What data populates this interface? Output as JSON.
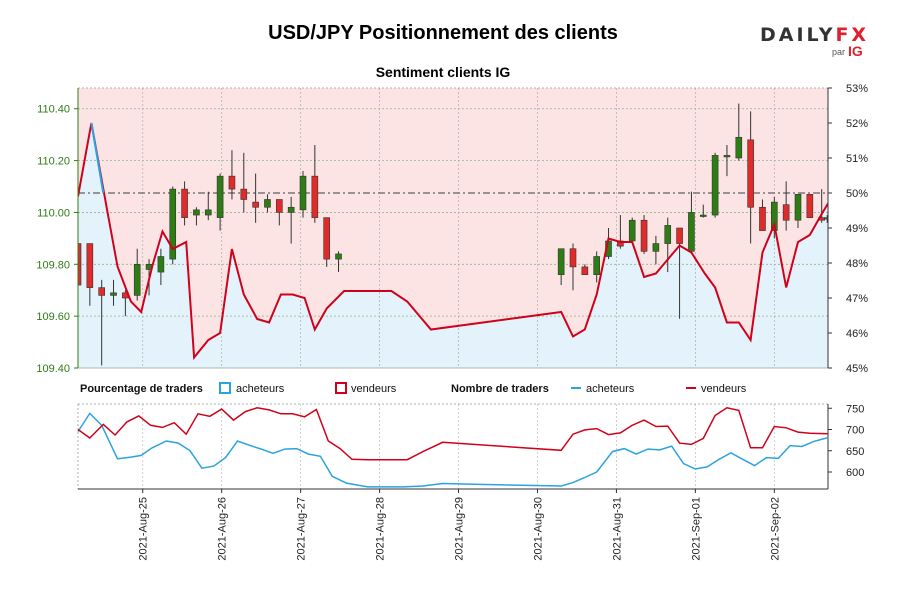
{
  "header": {
    "title": "USD/JPY Positionnement des clients",
    "subtitle": "Sentiment clients IG",
    "logo_main_a": "DAILY",
    "logo_main_b": "FX",
    "logo_par": "par",
    "logo_ig": "IG"
  },
  "colors": {
    "candle_up": "#2e7d14",
    "candle_down": "#e02b2b",
    "sentiment_line": "#d0021b",
    "bg_top": "#fce4e4",
    "bg_bottom": "#e4f3fb",
    "buyers_line": "#2aa3e0",
    "sellers_line": "#d0021b",
    "axis_left": "#2e7d14"
  },
  "legend": {
    "pct_label": "Pourcentage de traders",
    "pct_buyers": "acheteurs",
    "pct_sellers": "vendeurs",
    "count_label": "Nombre de traders",
    "count_buyers": "acheteurs",
    "count_sellers": "vendeurs"
  },
  "chart_data": [
    {
      "type": "candlestick",
      "left_axis": {
        "ylim": [
          109.4,
          110.48
        ],
        "ticks": [
          "109.40",
          "109.60",
          "109.80",
          "110.00",
          "110.20",
          "110.40"
        ],
        "tick_values": [
          109.4,
          109.6,
          109.8,
          110.0,
          110.2,
          110.4
        ]
      },
      "right_axis": {
        "ylim": [
          45,
          53
        ],
        "ticks": [
          "45%",
          "46%",
          "47%",
          "48%",
          "49%",
          "50%",
          "51%",
          "52%",
          "53%"
        ],
        "tick_values": [
          45,
          46,
          47,
          48,
          49,
          50,
          51,
          52,
          53
        ]
      },
      "reference_line_pct": 50,
      "x_labels": [
        "2021-Aug-25",
        "2021-Aug-26",
        "2021-Aug-27",
        "2021-Aug-28",
        "2021-Aug-29",
        "2021-Aug-30",
        "2021-Aug-31",
        "2021-Sep-01",
        "2021-Sep-02"
      ],
      "x_label_days": [
        1,
        2,
        3,
        4,
        5,
        6,
        7,
        8,
        9
      ],
      "x_range": [
        0.18,
        9.68
      ],
      "candles": [
        [
          0.18,
          109.88,
          110.04,
          109.7,
          109.72
        ],
        [
          0.33,
          109.88,
          109.88,
          109.64,
          109.71
        ],
        [
          0.48,
          109.71,
          109.74,
          109.41,
          109.68
        ],
        [
          0.63,
          109.68,
          109.74,
          109.64,
          109.69
        ],
        [
          0.78,
          109.69,
          109.7,
          109.6,
          109.67
        ],
        [
          0.93,
          109.68,
          109.86,
          109.66,
          109.8
        ],
        [
          1.08,
          109.78,
          109.82,
          109.68,
          109.8
        ],
        [
          1.23,
          109.77,
          109.86,
          109.72,
          109.83
        ],
        [
          1.38,
          109.82,
          110.1,
          109.8,
          110.09
        ],
        [
          1.53,
          110.09,
          110.12,
          109.95,
          109.98
        ],
        [
          1.68,
          109.99,
          110.02,
          109.95,
          110.01
        ],
        [
          1.83,
          109.99,
          110.08,
          109.97,
          110.01
        ],
        [
          1.98,
          109.98,
          110.15,
          109.93,
          110.14
        ],
        [
          2.13,
          110.14,
          110.24,
          110.05,
          110.09
        ],
        [
          2.28,
          110.09,
          110.23,
          110.0,
          110.05
        ],
        [
          2.43,
          110.04,
          110.15,
          109.96,
          110.02
        ],
        [
          2.58,
          110.02,
          110.07,
          110.0,
          110.05
        ],
        [
          2.73,
          110.05,
          110.05,
          109.95,
          110.0
        ],
        [
          2.88,
          110.0,
          110.06,
          109.88,
          110.02
        ],
        [
          3.03,
          110.01,
          110.16,
          109.98,
          110.14
        ],
        [
          3.18,
          110.14,
          110.26,
          109.96,
          109.98
        ],
        [
          3.33,
          109.98,
          109.98,
          109.79,
          109.82
        ],
        [
          3.48,
          109.82,
          109.85,
          109.77,
          109.84
        ],
        [
          6.3,
          109.76,
          109.85,
          109.72,
          109.86
        ],
        [
          6.45,
          109.86,
          109.88,
          109.7,
          109.79
        ],
        [
          6.6,
          109.79,
          109.8,
          109.77,
          109.76
        ],
        [
          6.75,
          109.76,
          109.85,
          109.73,
          109.83
        ],
        [
          6.9,
          109.83,
          109.94,
          109.82,
          109.89
        ],
        [
          7.05,
          109.89,
          109.99,
          109.86,
          109.87
        ],
        [
          7.2,
          109.89,
          109.98,
          109.88,
          109.97
        ],
        [
          7.35,
          109.97,
          109.99,
          109.84,
          109.85
        ],
        [
          7.5,
          109.85,
          109.91,
          109.8,
          109.88
        ],
        [
          7.65,
          109.88,
          109.98,
          109.77,
          109.95
        ],
        [
          7.8,
          109.94,
          109.94,
          109.59,
          109.88
        ],
        [
          7.95,
          109.85,
          110.08,
          109.84,
          110.0
        ],
        [
          8.1,
          109.99,
          110.03,
          109.98,
          109.99
        ],
        [
          8.25,
          109.99,
          110.23,
          109.98,
          110.22
        ],
        [
          8.4,
          110.22,
          110.26,
          110.14,
          110.22
        ],
        [
          8.55,
          110.21,
          110.42,
          110.2,
          110.29
        ],
        [
          8.7,
          110.28,
          110.39,
          109.88,
          110.02
        ],
        [
          8.85,
          110.02,
          110.05,
          109.93,
          109.93
        ],
        [
          9.0,
          109.93,
          110.06,
          109.9,
          110.04
        ],
        [
          9.15,
          110.03,
          110.12,
          109.93,
          109.97
        ],
        [
          9.3,
          109.97,
          110.07,
          109.94,
          110.07
        ],
        [
          9.45,
          110.07,
          110.07,
          109.98,
          109.98
        ],
        [
          9.6,
          109.98,
          110.09,
          109.96,
          109.97
        ],
        [
          9.67,
          109.98,
          109.99,
          109.96,
          109.98
        ]
      ],
      "sentiment_pct": [
        [
          0.18,
          49.9
        ],
        [
          0.35,
          52.0
        ],
        [
          0.55,
          49.5
        ],
        [
          0.68,
          47.9
        ],
        [
          0.85,
          46.9
        ],
        [
          0.98,
          46.6
        ],
        [
          1.12,
          47.9
        ],
        [
          1.25,
          48.9
        ],
        [
          1.38,
          48.4
        ],
        [
          1.55,
          48.6
        ],
        [
          1.65,
          45.3
        ],
        [
          1.83,
          45.8
        ],
        [
          1.98,
          46.0
        ],
        [
          2.13,
          48.4
        ],
        [
          2.28,
          47.1
        ],
        [
          2.45,
          46.4
        ],
        [
          2.6,
          46.3
        ],
        [
          2.75,
          47.1
        ],
        [
          2.9,
          47.1
        ],
        [
          3.05,
          47.0
        ],
        [
          3.18,
          46.1
        ],
        [
          3.33,
          46.7
        ],
        [
          3.55,
          47.2
        ],
        [
          4.15,
          47.2
        ],
        [
          4.35,
          46.9
        ],
        [
          4.65,
          46.1
        ],
        [
          6.3,
          46.6
        ],
        [
          6.45,
          45.9
        ],
        [
          6.6,
          46.1
        ],
        [
          6.75,
          47.1
        ],
        [
          6.9,
          48.7
        ],
        [
          7.05,
          48.6
        ],
        [
          7.2,
          48.6
        ],
        [
          7.35,
          47.6
        ],
        [
          7.5,
          47.7
        ],
        [
          7.65,
          48.1
        ],
        [
          7.8,
          48.5
        ],
        [
          7.95,
          48.3
        ],
        [
          8.12,
          47.7
        ],
        [
          8.25,
          47.3
        ],
        [
          8.4,
          46.3
        ],
        [
          8.55,
          46.3
        ],
        [
          8.7,
          45.8
        ],
        [
          8.85,
          48.3
        ],
        [
          9.0,
          49.1
        ],
        [
          9.15,
          47.3
        ],
        [
          9.3,
          48.6
        ],
        [
          9.45,
          48.8
        ],
        [
          9.6,
          49.4
        ],
        [
          9.68,
          49.7
        ]
      ]
    },
    {
      "type": "line",
      "ylim": [
        560,
        760
      ],
      "ticks": [
        "600",
        "650",
        "700",
        "750"
      ],
      "tick_values": [
        600,
        650,
        700,
        750
      ],
      "x_range": [
        0.18,
        9.68
      ],
      "series": [
        {
          "name": "acheteurs",
          "points": [
            [
              0.18,
              695
            ],
            [
              0.33,
              738
            ],
            [
              0.48,
              710
            ],
            [
              0.68,
              631
            ],
            [
              0.85,
              635
            ],
            [
              0.98,
              639
            ],
            [
              1.12,
              657
            ],
            [
              1.3,
              673
            ],
            [
              1.45,
              668
            ],
            [
              1.6,
              650
            ],
            [
              1.75,
              609
            ],
            [
              1.9,
              614
            ],
            [
              2.05,
              634
            ],
            [
              2.2,
              673
            ],
            [
              2.35,
              663
            ],
            [
              2.5,
              654
            ],
            [
              2.65,
              644
            ],
            [
              2.8,
              654
            ],
            [
              2.95,
              655
            ],
            [
              3.1,
              642
            ],
            [
              3.25,
              637
            ],
            [
              3.4,
              590
            ],
            [
              3.58,
              574
            ],
            [
              3.85,
              565
            ],
            [
              4.3,
              565
            ],
            [
              4.55,
              567
            ],
            [
              4.8,
              573
            ],
            [
              5.2,
              571
            ],
            [
              6.3,
              567
            ],
            [
              6.45,
              575
            ],
            [
              6.6,
              587
            ],
            [
              6.75,
              600
            ],
            [
              6.95,
              648
            ],
            [
              7.1,
              655
            ],
            [
              7.25,
              642
            ],
            [
              7.4,
              654
            ],
            [
              7.55,
              652
            ],
            [
              7.7,
              661
            ],
            [
              7.85,
              620
            ],
            [
              8.0,
              607
            ],
            [
              8.15,
              612
            ],
            [
              8.3,
              630
            ],
            [
              8.45,
              645
            ],
            [
              8.6,
              630
            ],
            [
              8.75,
              615
            ],
            [
              8.9,
              634
            ],
            [
              9.05,
              632
            ],
            [
              9.2,
              662
            ],
            [
              9.35,
              660
            ],
            [
              9.5,
              672
            ],
            [
              9.68,
              681
            ]
          ]
        },
        {
          "name": "vendeurs",
          "points": [
            [
              0.18,
              700
            ],
            [
              0.33,
              680
            ],
            [
              0.5,
              712
            ],
            [
              0.65,
              687
            ],
            [
              0.8,
              718
            ],
            [
              0.95,
              732
            ],
            [
              1.1,
              710
            ],
            [
              1.25,
              705
            ],
            [
              1.4,
              716
            ],
            [
              1.55,
              689
            ],
            [
              1.7,
              737
            ],
            [
              1.85,
              731
            ],
            [
              2.0,
              748
            ],
            [
              2.15,
              722
            ],
            [
              2.3,
              742
            ],
            [
              2.45,
              751
            ],
            [
              2.6,
              746
            ],
            [
              2.75,
              737
            ],
            [
              2.9,
              737
            ],
            [
              3.05,
              730
            ],
            [
              3.2,
              747
            ],
            [
              3.35,
              673
            ],
            [
              3.5,
              655
            ],
            [
              3.65,
              630
            ],
            [
              3.85,
              629
            ],
            [
              4.35,
              629
            ],
            [
              4.55,
              648
            ],
            [
              4.8,
              670
            ],
            [
              5.1,
              666
            ],
            [
              6.3,
              651
            ],
            [
              6.45,
              689
            ],
            [
              6.6,
              699
            ],
            [
              6.75,
              702
            ],
            [
              6.9,
              688
            ],
            [
              7.05,
              692
            ],
            [
              7.2,
              710
            ],
            [
              7.35,
              722
            ],
            [
              7.5,
              707
            ],
            [
              7.65,
              708
            ],
            [
              7.8,
              668
            ],
            [
              7.95,
              665
            ],
            [
              8.1,
              679
            ],
            [
              8.25,
              733
            ],
            [
              8.4,
              751
            ],
            [
              8.55,
              745
            ],
            [
              8.7,
              657
            ],
            [
              8.85,
              657
            ],
            [
              9.0,
              707
            ],
            [
              9.15,
              704
            ],
            [
              9.3,
              694
            ],
            [
              9.45,
              691
            ],
            [
              9.68,
              690
            ]
          ]
        }
      ]
    }
  ]
}
